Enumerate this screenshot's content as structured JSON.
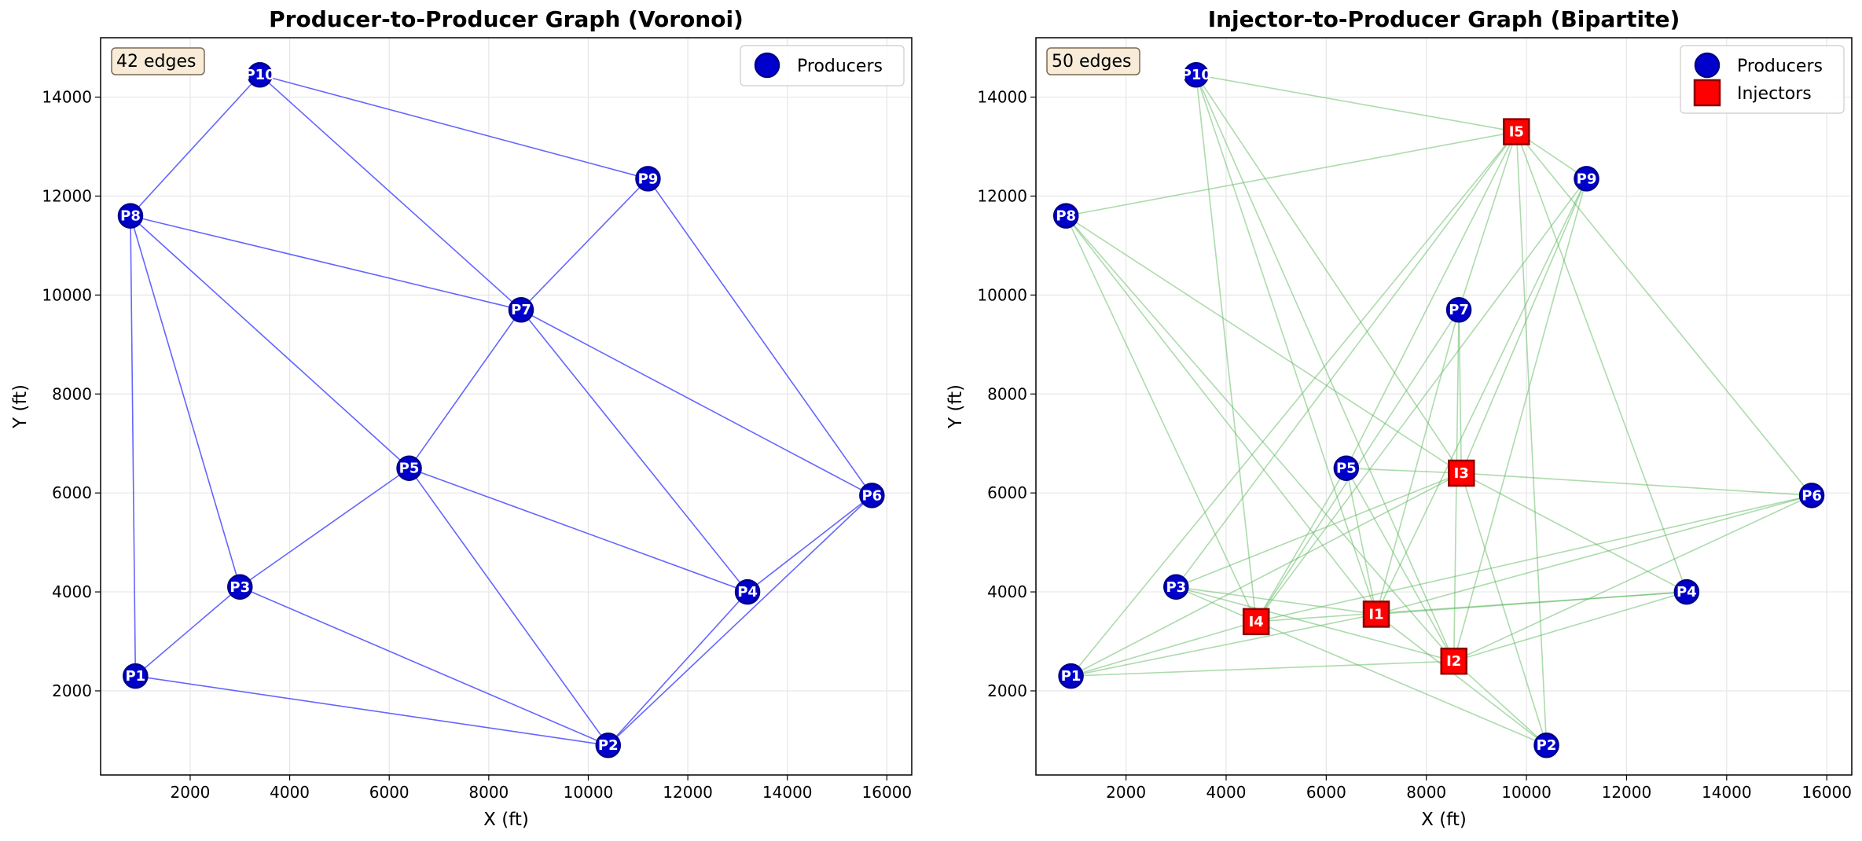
{
  "colors": {
    "producer_fill": "#0000cc",
    "producer_edge": "#00008b",
    "injector_fill": "#ff0000",
    "injector_edge": "#8b0000",
    "voronoi_edge": "#4a4aff",
    "bipartite_edge": "#5cb85c",
    "grid": "#e6e6e6",
    "badge_fill": "#f8ecd8",
    "badge_stroke": "#7a6a55"
  },
  "chart_data": [
    {
      "type": "scatter",
      "title": "Producer-to-Producer Graph (Voronoi)",
      "xlabel": "X (ft)",
      "ylabel": "Y (ft)",
      "xlim": [
        200,
        16500
      ],
      "ylim": [
        300,
        15200
      ],
      "xticks": [
        2000,
        4000,
        6000,
        8000,
        10000,
        12000,
        14000,
        16000
      ],
      "yticks": [
        2000,
        4000,
        6000,
        8000,
        10000,
        12000,
        14000
      ],
      "grid": true,
      "legend_position": "top-right",
      "legend": [
        {
          "label": "Producers",
          "marker": "circle"
        }
      ],
      "annotation": "42 edges",
      "producers": [
        {
          "name": "P1",
          "x": 900,
          "y": 2300
        },
        {
          "name": "P2",
          "x": 10400,
          "y": 900
        },
        {
          "name": "P3",
          "x": 3000,
          "y": 4100
        },
        {
          "name": "P4",
          "x": 13200,
          "y": 4000
        },
        {
          "name": "P5",
          "x": 6400,
          "y": 6500
        },
        {
          "name": "P6",
          "x": 15700,
          "y": 5950
        },
        {
          "name": "P7",
          "x": 8650,
          "y": 9700
        },
        {
          "name": "P8",
          "x": 800,
          "y": 11600
        },
        {
          "name": "P9",
          "x": 11200,
          "y": 12350
        },
        {
          "name": "P10",
          "x": 3400,
          "y": 14450
        }
      ],
      "injectors": [],
      "edges": [
        [
          "P1",
          "P3"
        ],
        [
          "P1",
          "P8"
        ],
        [
          "P1",
          "P2"
        ],
        [
          "P3",
          "P8"
        ],
        [
          "P3",
          "P5"
        ],
        [
          "P3",
          "P2"
        ],
        [
          "P8",
          "P10"
        ],
        [
          "P8",
          "P7"
        ],
        [
          "P8",
          "P5"
        ],
        [
          "P10",
          "P7"
        ],
        [
          "P10",
          "P9"
        ],
        [
          "P9",
          "P7"
        ],
        [
          "P9",
          "P6"
        ],
        [
          "P7",
          "P5"
        ],
        [
          "P7",
          "P4"
        ],
        [
          "P7",
          "P6"
        ],
        [
          "P5",
          "P2"
        ],
        [
          "P5",
          "P4"
        ],
        [
          "P4",
          "P2"
        ],
        [
          "P4",
          "P6"
        ],
        [
          "P2",
          "P6"
        ]
      ]
    },
    {
      "type": "scatter",
      "title": "Injector-to-Producer Graph (Bipartite)",
      "xlabel": "X (ft)",
      "ylabel": "Y (ft)",
      "xlim": [
        200,
        16500
      ],
      "ylim": [
        300,
        15200
      ],
      "xticks": [
        2000,
        4000,
        6000,
        8000,
        10000,
        12000,
        14000,
        16000
      ],
      "yticks": [
        2000,
        4000,
        6000,
        8000,
        10000,
        12000,
        14000
      ],
      "grid": true,
      "legend_position": "top-right",
      "legend": [
        {
          "label": "Producers",
          "marker": "circle"
        },
        {
          "label": "Injectors",
          "marker": "square"
        }
      ],
      "annotation": "50 edges",
      "producers": [
        {
          "name": "P1",
          "x": 900,
          "y": 2300
        },
        {
          "name": "P2",
          "x": 10400,
          "y": 900
        },
        {
          "name": "P3",
          "x": 3000,
          "y": 4100
        },
        {
          "name": "P4",
          "x": 13200,
          "y": 4000
        },
        {
          "name": "P5",
          "x": 6400,
          "y": 6500
        },
        {
          "name": "P6",
          "x": 15700,
          "y": 5950
        },
        {
          "name": "P7",
          "x": 8650,
          "y": 9700
        },
        {
          "name": "P8",
          "x": 800,
          "y": 11600
        },
        {
          "name": "P9",
          "x": 11200,
          "y": 12350
        },
        {
          "name": "P10",
          "x": 3400,
          "y": 14450
        }
      ],
      "injectors": [
        {
          "name": "I1",
          "x": 7000,
          "y": 3550
        },
        {
          "name": "I2",
          "x": 8550,
          "y": 2600
        },
        {
          "name": "I3",
          "x": 8700,
          "y": 6400
        },
        {
          "name": "I4",
          "x": 4600,
          "y": 3400
        },
        {
          "name": "I5",
          "x": 9800,
          "y": 13300
        }
      ],
      "edges": [
        [
          "I1",
          "P1"
        ],
        [
          "I1",
          "P2"
        ],
        [
          "I1",
          "P3"
        ],
        [
          "I1",
          "P4"
        ],
        [
          "I1",
          "P5"
        ],
        [
          "I1",
          "P6"
        ],
        [
          "I1",
          "P7"
        ],
        [
          "I1",
          "P8"
        ],
        [
          "I1",
          "P9"
        ],
        [
          "I1",
          "P10"
        ],
        [
          "I2",
          "P1"
        ],
        [
          "I2",
          "P2"
        ],
        [
          "I2",
          "P3"
        ],
        [
          "I2",
          "P4"
        ],
        [
          "I2",
          "P5"
        ],
        [
          "I2",
          "P6"
        ],
        [
          "I2",
          "P7"
        ],
        [
          "I2",
          "P8"
        ],
        [
          "I2",
          "P9"
        ],
        [
          "I2",
          "P10"
        ],
        [
          "I3",
          "P1"
        ],
        [
          "I3",
          "P2"
        ],
        [
          "I3",
          "P3"
        ],
        [
          "I3",
          "P4"
        ],
        [
          "I3",
          "P5"
        ],
        [
          "I3",
          "P6"
        ],
        [
          "I3",
          "P7"
        ],
        [
          "I3",
          "P8"
        ],
        [
          "I3",
          "P9"
        ],
        [
          "I3",
          "P10"
        ],
        [
          "I4",
          "P1"
        ],
        [
          "I4",
          "P2"
        ],
        [
          "I4",
          "P3"
        ],
        [
          "I4",
          "P4"
        ],
        [
          "I4",
          "P5"
        ],
        [
          "I4",
          "P6"
        ],
        [
          "I4",
          "P7"
        ],
        [
          "I4",
          "P8"
        ],
        [
          "I4",
          "P9"
        ],
        [
          "I4",
          "P10"
        ],
        [
          "I5",
          "P1"
        ],
        [
          "I5",
          "P2"
        ],
        [
          "I5",
          "P3"
        ],
        [
          "I5",
          "P4"
        ],
        [
          "I5",
          "P5"
        ],
        [
          "I5",
          "P6"
        ],
        [
          "I5",
          "P7"
        ],
        [
          "I5",
          "P8"
        ],
        [
          "I5",
          "P9"
        ],
        [
          "I5",
          "P10"
        ]
      ]
    }
  ]
}
